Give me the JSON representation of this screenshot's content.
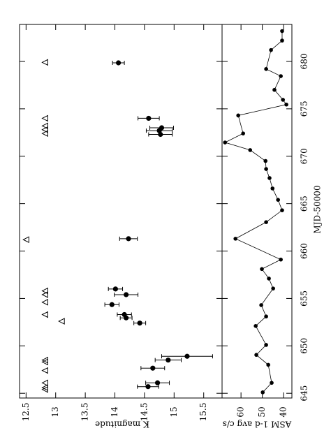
{
  "chart_data": [
    {
      "type": "scatter",
      "ylabel": "K magnitude",
      "xlim": [
        644.5,
        683.9
      ],
      "xticks": [
        645,
        650,
        655,
        660,
        665,
        670,
        675,
        680
      ],
      "ylim": [
        12.39,
        15.81
      ],
      "yticks": [
        12.5,
        13,
        13.5,
        14,
        14.5,
        15,
        15.5
      ],
      "series": [
        {
          "marker": "circle",
          "color": "#000000",
          "x": [
            645.7,
            646.1,
            647.65,
            648.5,
            648.9,
            652.4,
            652.95,
            653.3,
            654.35,
            655.4,
            656.0,
            661.3,
            672.3,
            672.7,
            673.0,
            674.0,
            679.85
          ],
          "values": [
            14.56,
            14.72,
            14.64,
            14.9,
            15.22,
            14.42,
            14.19,
            14.16,
            13.95,
            14.19,
            14.01,
            14.23,
            14.77,
            14.75,
            14.79,
            14.57,
            14.06
          ],
          "errors": [
            0.18,
            0.2,
            0.2,
            0.22,
            0.43,
            0.1,
            0.1,
            0.12,
            0.12,
            0.2,
            0.12,
            0.15,
            0.2,
            0.22,
            0.2,
            0.18,
            0.1
          ]
        },
        {
          "marker": "triangle",
          "color": "#000000",
          "x": [
            645.4,
            645.6,
            646.1,
            647.4,
            648.3,
            648.5,
            652.6,
            653.3,
            654.6,
            655.4,
            655.8,
            661.2,
            672.4,
            672.8,
            673.2,
            674.0,
            679.9
          ],
          "values": [
            12.82,
            12.82,
            12.82,
            12.82,
            12.82,
            12.82,
            13.1,
            12.82,
            12.82,
            12.82,
            12.82,
            12.5,
            12.82,
            12.82,
            12.82,
            12.82,
            12.82
          ]
        }
      ]
    },
    {
      "type": "line",
      "xlabel": "MJD-50000",
      "ylabel": "ASM 1-d avg c/s",
      "xlim": [
        644.5,
        683.9
      ],
      "xticks": [
        645,
        650,
        655,
        660,
        665,
        670,
        675,
        680
      ],
      "ylim": [
        68.9,
        36.1
      ],
      "yticks": [
        60,
        50,
        40
      ],
      "color": "#000000",
      "x": [
        645.1,
        646.1,
        648.0,
        649.05,
        650.1,
        652.1,
        653.1,
        654.3,
        656.05,
        657.1,
        658.1,
        659.1,
        661.3,
        663.05,
        664.3,
        665.4,
        666.6,
        667.7,
        668.65,
        669.5,
        670.65,
        671.45,
        672.4,
        674.3,
        675.45,
        675.95,
        677.0,
        678.45,
        679.2,
        681.2,
        682.2,
        683.2
      ],
      "values": [
        49.8,
        45.6,
        47.2,
        52.8,
        48.2,
        53.1,
        48.2,
        50.5,
        44.9,
        46.9,
        50.2,
        41.3,
        62.6,
        48.2,
        40.7,
        42.6,
        45.2,
        46.6,
        48.2,
        48.5,
        55.7,
        67.5,
        59.0,
        61.3,
        38.7,
        40.3,
        44.3,
        41.3,
        48.2,
        45.9,
        40.7,
        40.7
      ]
    }
  ]
}
